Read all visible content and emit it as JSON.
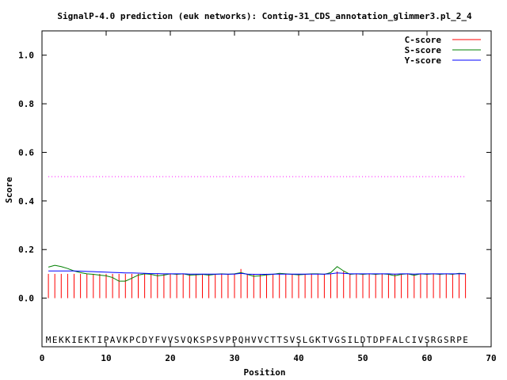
{
  "chart_data": {
    "type": "line",
    "title": "SignalP-4.0 prediction (euk networks): Contig-31_CDS_annotation_glimmer3.pl_2_4",
    "xlabel": "Position",
    "ylabel": "Score",
    "xlim": [
      0,
      70
    ],
    "ylim": [
      -0.2,
      1.1
    ],
    "xticks": [
      0,
      10,
      20,
      30,
      40,
      50,
      60,
      70
    ],
    "yticks": [
      0.0,
      0.2,
      0.4,
      0.6,
      0.8,
      1.0
    ],
    "ytick_labels": [
      "0.0",
      "0.2",
      "0.4",
      "0.6",
      "0.8",
      "1.0"
    ],
    "legend_position": "top-right",
    "sequence": "MEKKIEKTIPAVKPCDYFVVSVQKSPSVPPQHVVCTTSVSLGKTVGSILDTDPFALCIVSRGSRPE",
    "sequence_y": -0.17,
    "threshold": 0.5,
    "threshold_color": "#ff00ff",
    "series": [
      {
        "name": "C-score",
        "color": "#ff0000",
        "style": "impulses",
        "values": [
          0.1,
          0.1,
          0.1,
          0.1,
          0.1,
          0.1,
          0.1,
          0.1,
          0.1,
          0.1,
          0.1,
          0.1,
          0.1,
          0.1,
          0.1,
          0.1,
          0.1,
          0.1,
          0.1,
          0.1,
          0.1,
          0.1,
          0.1,
          0.1,
          0.1,
          0.1,
          0.1,
          0.1,
          0.1,
          0.1,
          0.12,
          0.1,
          0.1,
          0.1,
          0.1,
          0.1,
          0.1,
          0.1,
          0.1,
          0.1,
          0.1,
          0.1,
          0.1,
          0.1,
          0.1,
          0.11,
          0.11,
          0.1,
          0.1,
          0.1,
          0.1,
          0.1,
          0.1,
          0.1,
          0.1,
          0.1,
          0.1,
          0.1,
          0.1,
          0.1,
          0.1,
          0.1,
          0.1,
          0.1,
          0.1,
          0.1
        ]
      },
      {
        "name": "S-score",
        "color": "#008000",
        "style": "line",
        "values": [
          0.128,
          0.135,
          0.13,
          0.122,
          0.112,
          0.105,
          0.1,
          0.098,
          0.095,
          0.092,
          0.085,
          0.07,
          0.07,
          0.082,
          0.095,
          0.1,
          0.098,
          0.092,
          0.095,
          0.1,
          0.098,
          0.1,
          0.095,
          0.096,
          0.098,
          0.095,
          0.098,
          0.1,
          0.098,
          0.1,
          0.105,
          0.098,
          0.09,
          0.092,
          0.096,
          0.098,
          0.102,
          0.1,
          0.098,
          0.096,
          0.098,
          0.1,
          0.1,
          0.098,
          0.105,
          0.13,
          0.112,
          0.098,
          0.1,
          0.098,
          0.1,
          0.098,
          0.1,
          0.098,
          0.092,
          0.098,
          0.1,
          0.094,
          0.1,
          0.098,
          0.1,
          0.098,
          0.1,
          0.098,
          0.102,
          0.1
        ]
      },
      {
        "name": "Y-score",
        "color": "#0000ff",
        "style": "line",
        "values": [
          0.112,
          0.112,
          0.112,
          0.112,
          0.112,
          0.111,
          0.11,
          0.109,
          0.108,
          0.107,
          0.106,
          0.105,
          0.104,
          0.104,
          0.103,
          0.102,
          0.101,
          0.101,
          0.1,
          0.1,
          0.1,
          0.1,
          0.099,
          0.099,
          0.099,
          0.099,
          0.099,
          0.099,
          0.099,
          0.099,
          0.102,
          0.099,
          0.098,
          0.098,
          0.098,
          0.099,
          0.099,
          0.099,
          0.099,
          0.099,
          0.099,
          0.099,
          0.099,
          0.099,
          0.1,
          0.104,
          0.102,
          0.1,
          0.1,
          0.1,
          0.1,
          0.1,
          0.1,
          0.1,
          0.099,
          0.1,
          0.1,
          0.099,
          0.1,
          0.1,
          0.1,
          0.1,
          0.1,
          0.1,
          0.1,
          0.1
        ]
      }
    ]
  }
}
